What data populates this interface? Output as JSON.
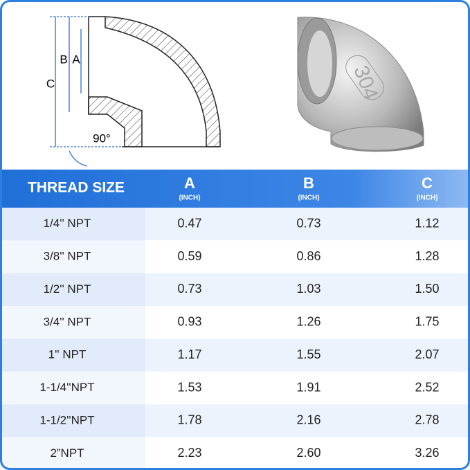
{
  "diagram": {
    "labels": {
      "c": "C",
      "b": "B",
      "a": "A",
      "angle": "90°"
    },
    "marking": "304"
  },
  "table": {
    "header": [
      "THREAD SIZE",
      "A",
      "B",
      "C"
    ],
    "unit": "(INCH)",
    "rows": [
      [
        "1/4'' NPT",
        "0.47",
        "0.73",
        "1.12"
      ],
      [
        "3/8'' NPT",
        "0.59",
        "0.86",
        "1.28"
      ],
      [
        "1/2'' NPT",
        "0.73",
        "1.03",
        "1.50"
      ],
      [
        "3/4'' NPT",
        "0.93",
        "1.26",
        "1.75"
      ],
      [
        "1'' NPT",
        "1.17",
        "1.55",
        "2.07"
      ],
      [
        "1-1/4''NPT",
        "1.53",
        "1.91",
        "2.52"
      ],
      [
        "1-1/2''NPT",
        "1.78",
        "2.16",
        "2.78"
      ],
      [
        "2”NPT",
        "2.23",
        "2.60",
        "3.26"
      ]
    ]
  }
}
